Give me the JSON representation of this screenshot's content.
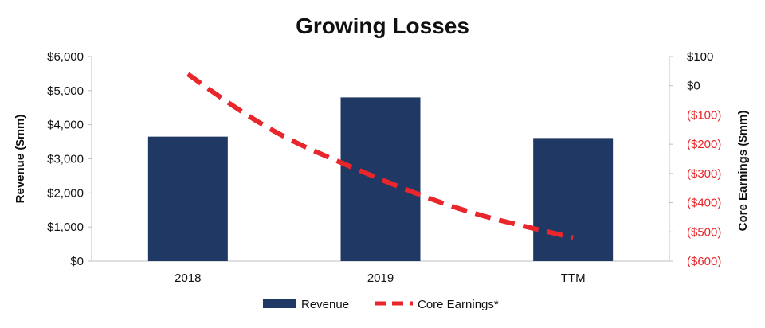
{
  "chart_data": {
    "type": "bar",
    "title": "Growing Losses",
    "categories": [
      "2018",
      "2019",
      "TTM"
    ],
    "series": [
      {
        "name": "Revenue",
        "type": "bar",
        "axis": "left",
        "values": [
          3650,
          4800,
          3610
        ]
      },
      {
        "name": "Core Earnings*",
        "type": "line",
        "axis": "right",
        "style": "dashed",
        "values": [
          40,
          -320,
          -520
        ]
      }
    ],
    "left_axis": {
      "label": "Revenue ($mm)",
      "ylim": [
        0,
        6000
      ],
      "ticks": [
        {
          "value": 0,
          "label": "$0"
        },
        {
          "value": 1000,
          "label": "$1,000"
        },
        {
          "value": 2000,
          "label": "$2,000"
        },
        {
          "value": 3000,
          "label": "$3,000"
        },
        {
          "value": 4000,
          "label": "$4,000"
        },
        {
          "value": 5000,
          "label": "$5,000"
        },
        {
          "value": 6000,
          "label": "$6,000"
        }
      ]
    },
    "right_axis": {
      "label": "Core Earnings ($mm)",
      "ylim": [
        -600,
        100
      ],
      "ticks": [
        {
          "value": 100,
          "label": "$100",
          "negative": false
        },
        {
          "value": 0,
          "label": "$0",
          "negative": false
        },
        {
          "value": -100,
          "label": "($100)",
          "negative": true
        },
        {
          "value": -200,
          "label": "($200)",
          "negative": true
        },
        {
          "value": -300,
          "label": "($300)",
          "negative": true
        },
        {
          "value": -400,
          "label": "($400)",
          "negative": true
        },
        {
          "value": -500,
          "label": "($500)",
          "negative": true
        },
        {
          "value": -600,
          "label": "($600)",
          "negative": true
        }
      ]
    },
    "grid": false,
    "legend": "bottom",
    "colors": {
      "bar": "#1f3864",
      "line": "#e8262b",
      "negative_tick": "#e8262b",
      "text": "#111111",
      "axis": "#bfbfbf"
    }
  }
}
